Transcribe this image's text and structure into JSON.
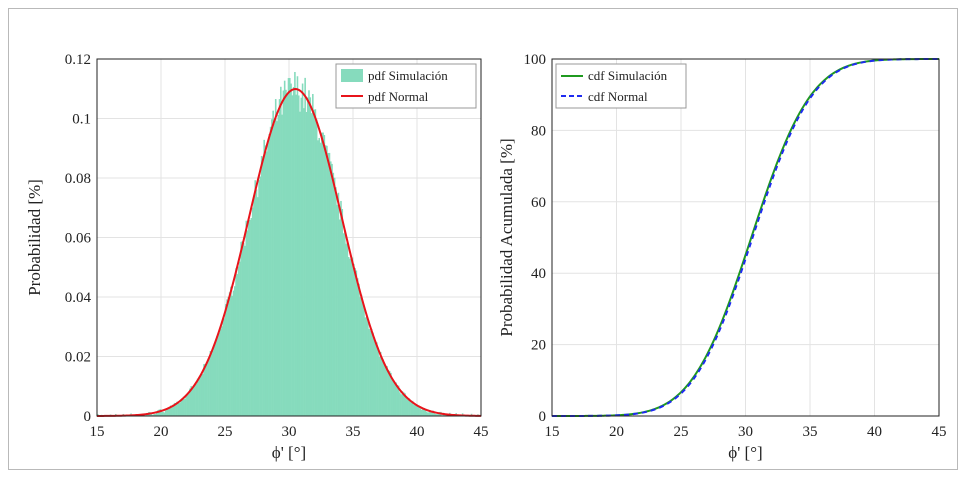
{
  "chart_data": [
    {
      "type": "bar",
      "ylabel": "Probabilidad [%]",
      "xlabel": "ϕ' [°]",
      "xlim": [
        15,
        45
      ],
      "ylim": [
        0,
        0.12
      ],
      "xticks": [
        15,
        20,
        25,
        30,
        35,
        40,
        45
      ],
      "yticks": [
        0,
        0.02,
        0.04,
        0.06,
        0.08,
        0.1,
        0.12
      ],
      "ytick_labels": [
        "0",
        "0.02",
        "0.04",
        "0.06",
        "0.08",
        "0.1",
        "0.12"
      ],
      "grid": true,
      "legend_position": "top-right",
      "series": [
        {
          "name": "pdf Simulación",
          "kind": "histogram",
          "color": "#86dbbd",
          "mean": 30.5,
          "std": 3.63,
          "bin_width": 0.1
        },
        {
          "name": "pdf Normal",
          "kind": "line",
          "color": "#e8141b",
          "mean": 30.5,
          "std": 3.63
        }
      ]
    },
    {
      "type": "line",
      "ylabel": "Probabilidad Acumulada [%]",
      "xlabel": "ϕ' [°]",
      "xlim": [
        15,
        45
      ],
      "ylim": [
        0,
        100
      ],
      "xticks": [
        15,
        20,
        25,
        30,
        35,
        40,
        45
      ],
      "yticks": [
        0,
        20,
        40,
        60,
        80,
        100
      ],
      "ytick_labels": [
        "0",
        "20",
        "40",
        "60",
        "80",
        "100"
      ],
      "grid": true,
      "legend_position": "top-left",
      "series": [
        {
          "name": "cdf Simulación",
          "style": "solid",
          "color": "#1f9a1f",
          "mean": 30.45,
          "std": 3.63
        },
        {
          "name": "cdf Normal",
          "style": "dashed",
          "color": "#1f2bf0",
          "mean": 30.55,
          "std": 3.63
        }
      ]
    }
  ]
}
